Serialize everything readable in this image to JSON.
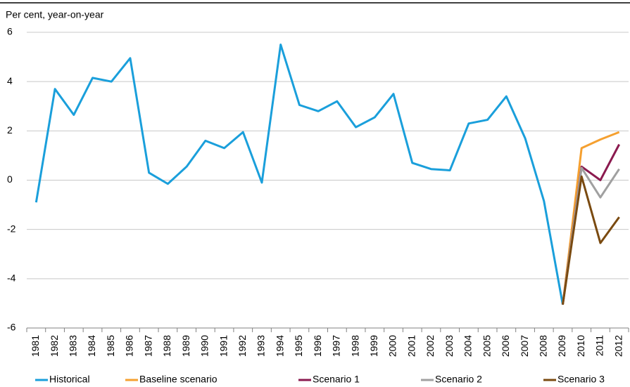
{
  "chart_data": {
    "type": "line",
    "y_label": "Per cent, year-on-year",
    "categories": [
      "1981",
      "1982",
      "1983",
      "1984",
      "1985",
      "1986",
      "1987",
      "1988",
      "1989",
      "1990",
      "1991",
      "1992",
      "1993",
      "1994",
      "1995",
      "1996",
      "1997",
      "1998",
      "1999",
      "2000",
      "2001",
      "2002",
      "2003",
      "2004",
      "2005",
      "2006",
      "2007",
      "2008",
      "2009",
      "2010",
      "2011",
      "2012"
    ],
    "series": [
      {
        "name": "Historical",
        "color": "#1a9fdb",
        "values": [
          -0.9,
          3.7,
          2.65,
          4.15,
          4.0,
          4.95,
          0.3,
          -0.15,
          0.55,
          1.6,
          1.3,
          1.95,
          -0.1,
          5.5,
          3.05,
          2.8,
          3.2,
          2.15,
          2.55,
          3.5,
          0.7,
          0.45,
          0.4,
          2.3,
          2.45,
          3.4,
          1.7,
          -0.85,
          -5.05,
          null,
          null,
          null
        ]
      },
      {
        "name": "Baseline scenario",
        "color": "#f5a030",
        "values": [
          null,
          null,
          null,
          null,
          null,
          null,
          null,
          null,
          null,
          null,
          null,
          null,
          null,
          null,
          null,
          null,
          null,
          null,
          null,
          null,
          null,
          null,
          null,
          null,
          null,
          null,
          null,
          null,
          -5.05,
          1.3,
          1.65,
          1.95
        ]
      },
      {
        "name": "Scenario 1",
        "color": "#8b1a4f",
        "values": [
          null,
          null,
          null,
          null,
          null,
          null,
          null,
          null,
          null,
          null,
          null,
          null,
          null,
          null,
          null,
          null,
          null,
          null,
          null,
          null,
          null,
          null,
          null,
          null,
          null,
          null,
          null,
          null,
          -5.05,
          0.55,
          0.0,
          1.45
        ]
      },
      {
        "name": "Scenario 2",
        "color": "#a0a0a0",
        "values": [
          null,
          null,
          null,
          null,
          null,
          null,
          null,
          null,
          null,
          null,
          null,
          null,
          null,
          null,
          null,
          null,
          null,
          null,
          null,
          null,
          null,
          null,
          null,
          null,
          null,
          null,
          null,
          null,
          -5.05,
          0.5,
          -0.7,
          0.45
        ]
      },
      {
        "name": "Scenario 3",
        "color": "#7a4a10",
        "values": [
          null,
          null,
          null,
          null,
          null,
          null,
          null,
          null,
          null,
          null,
          null,
          null,
          null,
          null,
          null,
          null,
          null,
          null,
          null,
          null,
          null,
          null,
          null,
          null,
          null,
          null,
          null,
          null,
          -5.05,
          0.15,
          -2.55,
          -1.5
        ]
      }
    ],
    "ylim": [
      -6,
      6
    ],
    "yticks": [
      -6,
      -4,
      -2,
      0,
      2,
      4,
      6
    ],
    "grid": true
  }
}
